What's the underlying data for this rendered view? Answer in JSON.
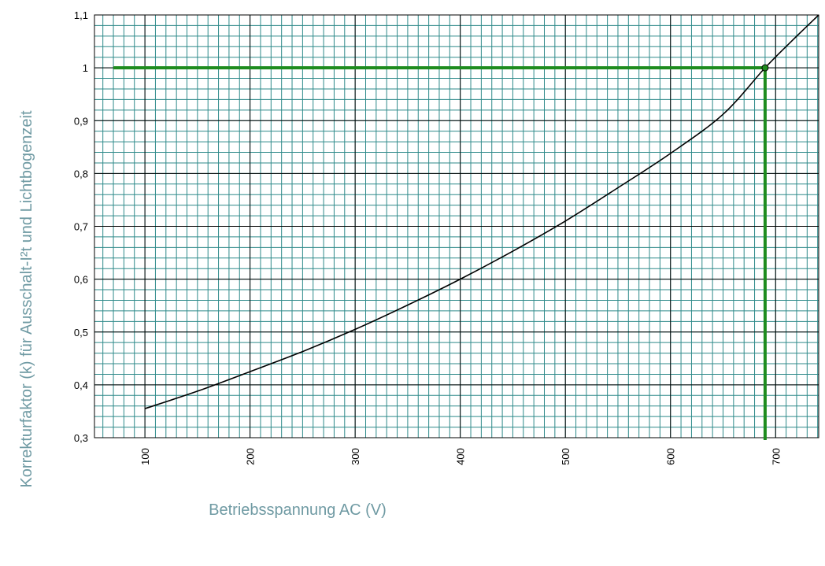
{
  "chart_data": {
    "type": "line",
    "xlabel": "Betriebsspannung AC (V)",
    "ylabel": "Korrekturfaktor (k) für Ausschalt-I²t und Lichtbogenzeit",
    "xlim": [
      52,
      741
    ],
    "ylim": [
      0.3,
      1.1
    ],
    "x_ticks": [
      {
        "value": 100,
        "label": "100"
      },
      {
        "value": 200,
        "label": "200"
      },
      {
        "value": 300,
        "label": "300"
      },
      {
        "value": 400,
        "label": "400"
      },
      {
        "value": 500,
        "label": "500"
      },
      {
        "value": 600,
        "label": "600"
      },
      {
        "value": 700,
        "label": "700"
      }
    ],
    "y_ticks": [
      {
        "value": 0.3,
        "label": "0,3"
      },
      {
        "value": 0.4,
        "label": "0,4"
      },
      {
        "value": 0.5,
        "label": "0,5"
      },
      {
        "value": 0.6,
        "label": "0,6"
      },
      {
        "value": 0.7,
        "label": "0,7"
      },
      {
        "value": 0.8,
        "label": "0,8"
      },
      {
        "value": 0.9,
        "label": "0,9"
      },
      {
        "value": 1.0,
        "label": "1"
      },
      {
        "value": 1.1,
        "label": "1,1"
      }
    ],
    "minor_x_step": 10,
    "minor_y_step": 0.02,
    "grid": true,
    "series": [
      {
        "color": "#000000",
        "values": [
          {
            "x": 100,
            "y": 0.355
          },
          {
            "x": 150,
            "y": 0.388
          },
          {
            "x": 200,
            "y": 0.425
          },
          {
            "x": 250,
            "y": 0.463
          },
          {
            "x": 300,
            "y": 0.505
          },
          {
            "x": 350,
            "y": 0.551
          },
          {
            "x": 400,
            "y": 0.6
          },
          {
            "x": 450,
            "y": 0.653
          },
          {
            "x": 500,
            "y": 0.71
          },
          {
            "x": 550,
            "y": 0.773
          },
          {
            "x": 600,
            "y": 0.838
          },
          {
            "x": 650,
            "y": 0.912
          },
          {
            "x": 690,
            "y": 1.0
          },
          {
            "x": 715,
            "y": 1.05
          },
          {
            "x": 741,
            "y": 1.1
          }
        ]
      }
    ],
    "reference": {
      "color": "#1e8c1e",
      "x": 690,
      "y": 1.0,
      "line_start_x": 70
    },
    "colors": {
      "minor_grid": "#2e8a8a",
      "major_grid": "#000000",
      "axis_title": "#6f9aa3"
    }
  }
}
